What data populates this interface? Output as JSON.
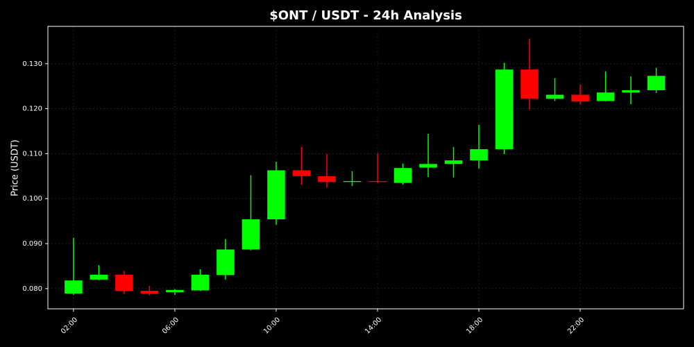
{
  "chart_data": {
    "type": "candlestick",
    "title": "$ONT / USDT - 24h Analysis",
    "ylabel": "Price (USDT)",
    "x": [
      2,
      3,
      4,
      5,
      6,
      7,
      8,
      9,
      10,
      11,
      12,
      13,
      14,
      15,
      16,
      17,
      18,
      19,
      20,
      21,
      22,
      23,
      24,
      25
    ],
    "open": [
      0.0789,
      0.082,
      0.0831,
      0.0795,
      0.0792,
      0.0796,
      0.083,
      0.0887,
      0.0954,
      0.1063,
      0.105,
      0.1037,
      0.1039,
      0.1035,
      0.1069,
      0.1077,
      0.1085,
      0.111,
      0.1287,
      0.1222,
      0.1231,
      0.1217,
      0.1236,
      0.1241
    ],
    "high": [
      0.0913,
      0.0852,
      0.0839,
      0.0806,
      0.0799,
      0.0843,
      0.091,
      0.1052,
      0.1082,
      0.1115,
      0.1099,
      0.1061,
      0.1101,
      0.1078,
      0.1144,
      0.1115,
      0.1164,
      0.1302,
      0.1356,
      0.1268,
      0.1254,
      0.1283,
      0.1272,
      0.1291
    ],
    "low": [
      0.0786,
      0.0819,
      0.0788,
      0.0785,
      0.0786,
      0.0795,
      0.082,
      0.0885,
      0.0942,
      0.1031,
      0.1025,
      0.1028,
      0.1035,
      0.1031,
      0.1048,
      0.1047,
      0.1067,
      0.1099,
      0.1198,
      0.1217,
      0.1209,
      0.1216,
      0.121,
      0.1235
    ],
    "close": [
      0.0818,
      0.0831,
      0.0795,
      0.0789,
      0.0797,
      0.0831,
      0.0887,
      0.0954,
      0.1063,
      0.105,
      0.1037,
      0.1039,
      0.1037,
      0.1068,
      0.1077,
      0.1085,
      0.111,
      0.1287,
      0.1222,
      0.1231,
      0.1216,
      0.1236,
      0.1241,
      0.1273
    ],
    "up_color": "#00ff00",
    "down_color": "#ff0000",
    "xlim": [
      0.99,
      26.08
    ],
    "xticks": [
      {
        "value": 2,
        "label": "02:00"
      },
      {
        "value": 6,
        "label": "06:00"
      },
      {
        "value": 10,
        "label": "10:00"
      },
      {
        "value": 14,
        "label": "14:00"
      },
      {
        "value": 18,
        "label": "18:00"
      },
      {
        "value": 22,
        "label": "22:00"
      }
    ],
    "ylim": [
      0.0755,
      0.1383
    ],
    "yticks": [
      {
        "value": 0.08,
        "label": "0.080"
      },
      {
        "value": 0.09,
        "label": "0.090"
      },
      {
        "value": 0.1,
        "label": "0.100"
      },
      {
        "value": 0.11,
        "label": "0.110"
      },
      {
        "value": 0.12,
        "label": "0.120"
      },
      {
        "value": 0.13,
        "label": "0.130"
      }
    ],
    "grid": true
  }
}
